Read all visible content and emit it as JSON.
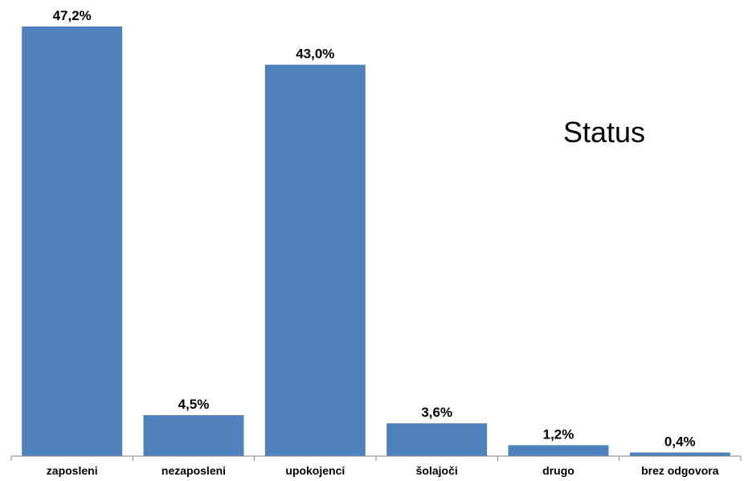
{
  "chart_data": {
    "type": "bar",
    "title": "Status",
    "categories": [
      "zaposleni",
      "nezaposleni",
      "upokojenci",
      "šolajoči",
      "drugo",
      "brez odgovora"
    ],
    "values": [
      47.2,
      4.5,
      43.0,
      3.6,
      1.2,
      0.4
    ],
    "value_labels": [
      "47,2%",
      "4,5%",
      "43,0%",
      "3,6%",
      "1,2%",
      "0,4%"
    ],
    "unit": "%",
    "ylim": [
      0,
      47.2
    ],
    "grid": false,
    "legend": "none",
    "xlabel": "",
    "ylabel": ""
  },
  "colors": {
    "bar": "#4f81bd",
    "axis": "#868686"
  }
}
